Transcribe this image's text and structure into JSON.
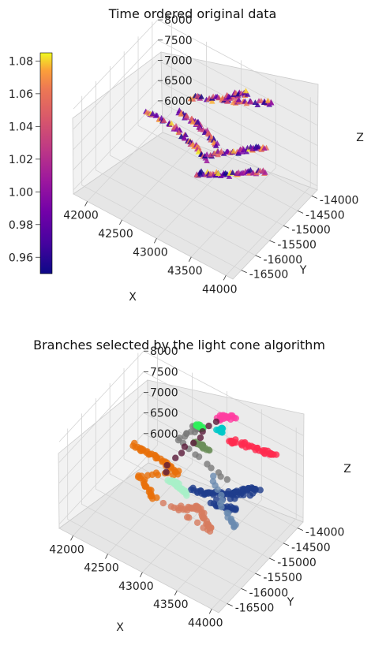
{
  "chart_data": [
    {
      "type": "scatter",
      "projection": "3d",
      "title": "Time ordered original data",
      "marker": "triangle",
      "xlabel": "X",
      "ylabel": "Y",
      "zlabel": "Z",
      "xlim": [
        41800,
        44100
      ],
      "ylim": [
        -16800,
        -13800
      ],
      "zlim": [
        5900,
        8100
      ],
      "xticks": [
        "42000",
        "42500",
        "43000",
        "43500",
        "44000"
      ],
      "yticks": [
        "-14000",
        "-14500",
        "-15000",
        "-15500",
        "-16000",
        "-16500"
      ],
      "zticks": [
        "6000",
        "6500",
        "7000",
        "7500",
        "8000"
      ],
      "grid": true,
      "colorbar": {
        "colormap": "plasma",
        "range": [
          0.95,
          1.085
        ],
        "ticks": [
          "0.96",
          "0.98",
          "1.00",
          "1.02",
          "1.04",
          "1.06",
          "1.08"
        ],
        "placement": "left"
      },
      "series": [
        {
          "id": "lower-left-arm",
          "points": [
            [
              41950,
              -14600,
              6480
            ],
            [
              42150,
              -14620,
              6500
            ],
            [
              42350,
              -14650,
              6520
            ],
            [
              42550,
              -14750,
              6550
            ],
            [
              42700,
              -14850,
              6580
            ],
            [
              42850,
              -14950,
              6600
            ],
            [
              43000,
              -15050,
              6580
            ]
          ]
        },
        {
          "id": "lower-center-body",
          "points": [
            [
              42900,
              -15150,
              6200
            ],
            [
              43050,
              -15100,
              6300
            ],
            [
              43150,
              -15050,
              6350
            ],
            [
              43300,
              -14950,
              6400
            ],
            [
              43450,
              -14850,
              6500
            ],
            [
              43550,
              -14750,
              6550
            ],
            [
              43700,
              -14650,
              6600
            ]
          ]
        },
        {
          "id": "upper-left-strand",
          "points": [
            [
              42300,
              -14250,
              6500
            ],
            [
              42450,
              -14300,
              6550
            ],
            [
              42600,
              -14400,
              6620
            ],
            [
              42750,
              -14500,
              6680
            ],
            [
              42900,
              -14650,
              6720
            ],
            [
              43050,
              -14750,
              6760
            ]
          ]
        },
        {
          "id": "middle-branch",
          "points": [
            [
              43000,
              -15050,
              6650
            ],
            [
              43150,
              -14950,
              6800
            ],
            [
              43300,
              -14850,
              6900
            ],
            [
              43450,
              -14750,
              7000
            ],
            [
              43550,
              -14650,
              7050
            ],
            [
              43650,
              -14550,
              7100
            ]
          ]
        },
        {
          "id": "upper-branch",
          "points": [
            [
              42600,
              -14600,
              7400
            ],
            [
              42750,
              -14500,
              7450
            ],
            [
              42900,
              -14400,
              7500
            ],
            [
              43050,
              -14300,
              7520
            ],
            [
              43200,
              -14200,
              7560
            ],
            [
              43400,
              -14050,
              7600
            ],
            [
              43500,
              -13950,
              7650
            ]
          ]
        },
        {
          "id": "top-tip",
          "points": [
            [
              43000,
              -14450,
              7650
            ],
            [
              43100,
              -14400,
              7750
            ],
            [
              43200,
              -14350,
              7850
            ],
            [
              43300,
              -14300,
              7950
            ]
          ]
        }
      ]
    },
    {
      "type": "scatter",
      "projection": "3d",
      "title": "Branches selected by the light cone algorithm",
      "marker": "circle",
      "xlabel": "X",
      "ylabel": "Y",
      "zlabel": "Z",
      "xlim": [
        41800,
        44100
      ],
      "ylim": [
        -16800,
        -13800
      ],
      "zlim": [
        5900,
        8100
      ],
      "xticks": [
        "42000",
        "42500",
        "43000",
        "43500",
        "44000"
      ],
      "yticks": [
        "-14000",
        "-14500",
        "-15000",
        "-15500",
        "-16000",
        "-16500"
      ],
      "zticks": [
        "6000",
        "6500",
        "7000",
        "7500",
        "8000"
      ],
      "grid": true,
      "series": [
        {
          "color": "#e8710a",
          "points": [
            [
              41950,
              -14600,
              6480
            ],
            [
              42150,
              -14620,
              6500
            ],
            [
              42350,
              -14650,
              6520
            ],
            [
              42550,
              -14700,
              6540
            ],
            [
              42700,
              -14800,
              6560
            ],
            [
              42250,
              -15100,
              6350
            ],
            [
              42450,
              -15250,
              6300
            ],
            [
              42600,
              -15350,
              6250
            ]
          ]
        },
        {
          "color": "#1f3d8c",
          "points": [
            [
              43000,
              -15050,
              6650
            ],
            [
              43150,
              -14950,
              6600
            ],
            [
              43300,
              -14850,
              6650
            ],
            [
              43450,
              -14750,
              6700
            ],
            [
              43550,
              -14650,
              6750
            ],
            [
              43600,
              -14500,
              6800
            ],
            [
              43700,
              -14400,
              6750
            ],
            [
              43300,
              -15050,
              6550
            ],
            [
              43450,
              -14950,
              6500
            ],
            [
              43550,
              -14800,
              6450
            ]
          ]
        },
        {
          "color": "#a8f0c8",
          "points": [
            [
              42650,
              -14950,
              6480
            ],
            [
              42750,
              -15000,
              6500
            ],
            [
              42850,
              -15050,
              6520
            ],
            [
              42950,
              -15100,
              6500
            ]
          ]
        },
        {
          "color": "#d77c5f",
          "points": [
            [
              42900,
              -15200,
              6200
            ],
            [
              43050,
              -15150,
              6300
            ],
            [
              43150,
              -15100,
              6350
            ],
            [
              43300,
              -15250,
              6250
            ],
            [
              43400,
              -15300,
              6150
            ],
            [
              42700,
              -15250,
              6200
            ]
          ]
        },
        {
          "color": "#7a7a7a",
          "points": [
            [
              42700,
              -14300,
              7350
            ],
            [
              42850,
              -14250,
              7380
            ],
            [
              42500,
              -14350,
              6900
            ],
            [
              43350,
              -14600,
              6800
            ]
          ]
        },
        {
          "color": "#ff2a4f",
          "points": [
            [
              43200,
              -14300,
              7450
            ],
            [
              43350,
              -14200,
              7430
            ],
            [
              43500,
              -14100,
              7400
            ],
            [
              43650,
              -14000,
              7350
            ],
            [
              43750,
              -13950,
              7300
            ]
          ]
        },
        {
          "color": "#6b8e5a",
          "points": [
            [
              42800,
              -14400,
              7100
            ],
            [
              42900,
              -14450,
              7150
            ],
            [
              43000,
              -14500,
              7200
            ]
          ]
        },
        {
          "color": "#2df05a",
          "points": [
            [
              42850,
              -14500,
              7650
            ],
            [
              42950,
              -14550,
              7700
            ]
          ]
        },
        {
          "color": "#00c8c8",
          "points": [
            [
              43150,
              -14450,
              7750
            ],
            [
              43200,
              -14420,
              7800
            ]
          ]
        },
        {
          "color": "#ff3ca0",
          "points": [
            [
              43100,
              -14400,
              7950
            ],
            [
              43200,
              -14350,
              8050
            ],
            [
              43300,
              -14300,
              8100
            ]
          ]
        },
        {
          "color": "#5a1a3a",
          "points": [
            [
              43050,
              -14350,
              7850
            ],
            [
              42500,
              -14800,
              6450
            ]
          ]
        },
        {
          "color": "#6a8bb0",
          "points": [
            [
              43200,
              -14800,
              6900
            ],
            [
              43500,
              -15000,
              6400
            ],
            [
              43650,
              -15100,
              6300
            ]
          ]
        }
      ]
    }
  ]
}
